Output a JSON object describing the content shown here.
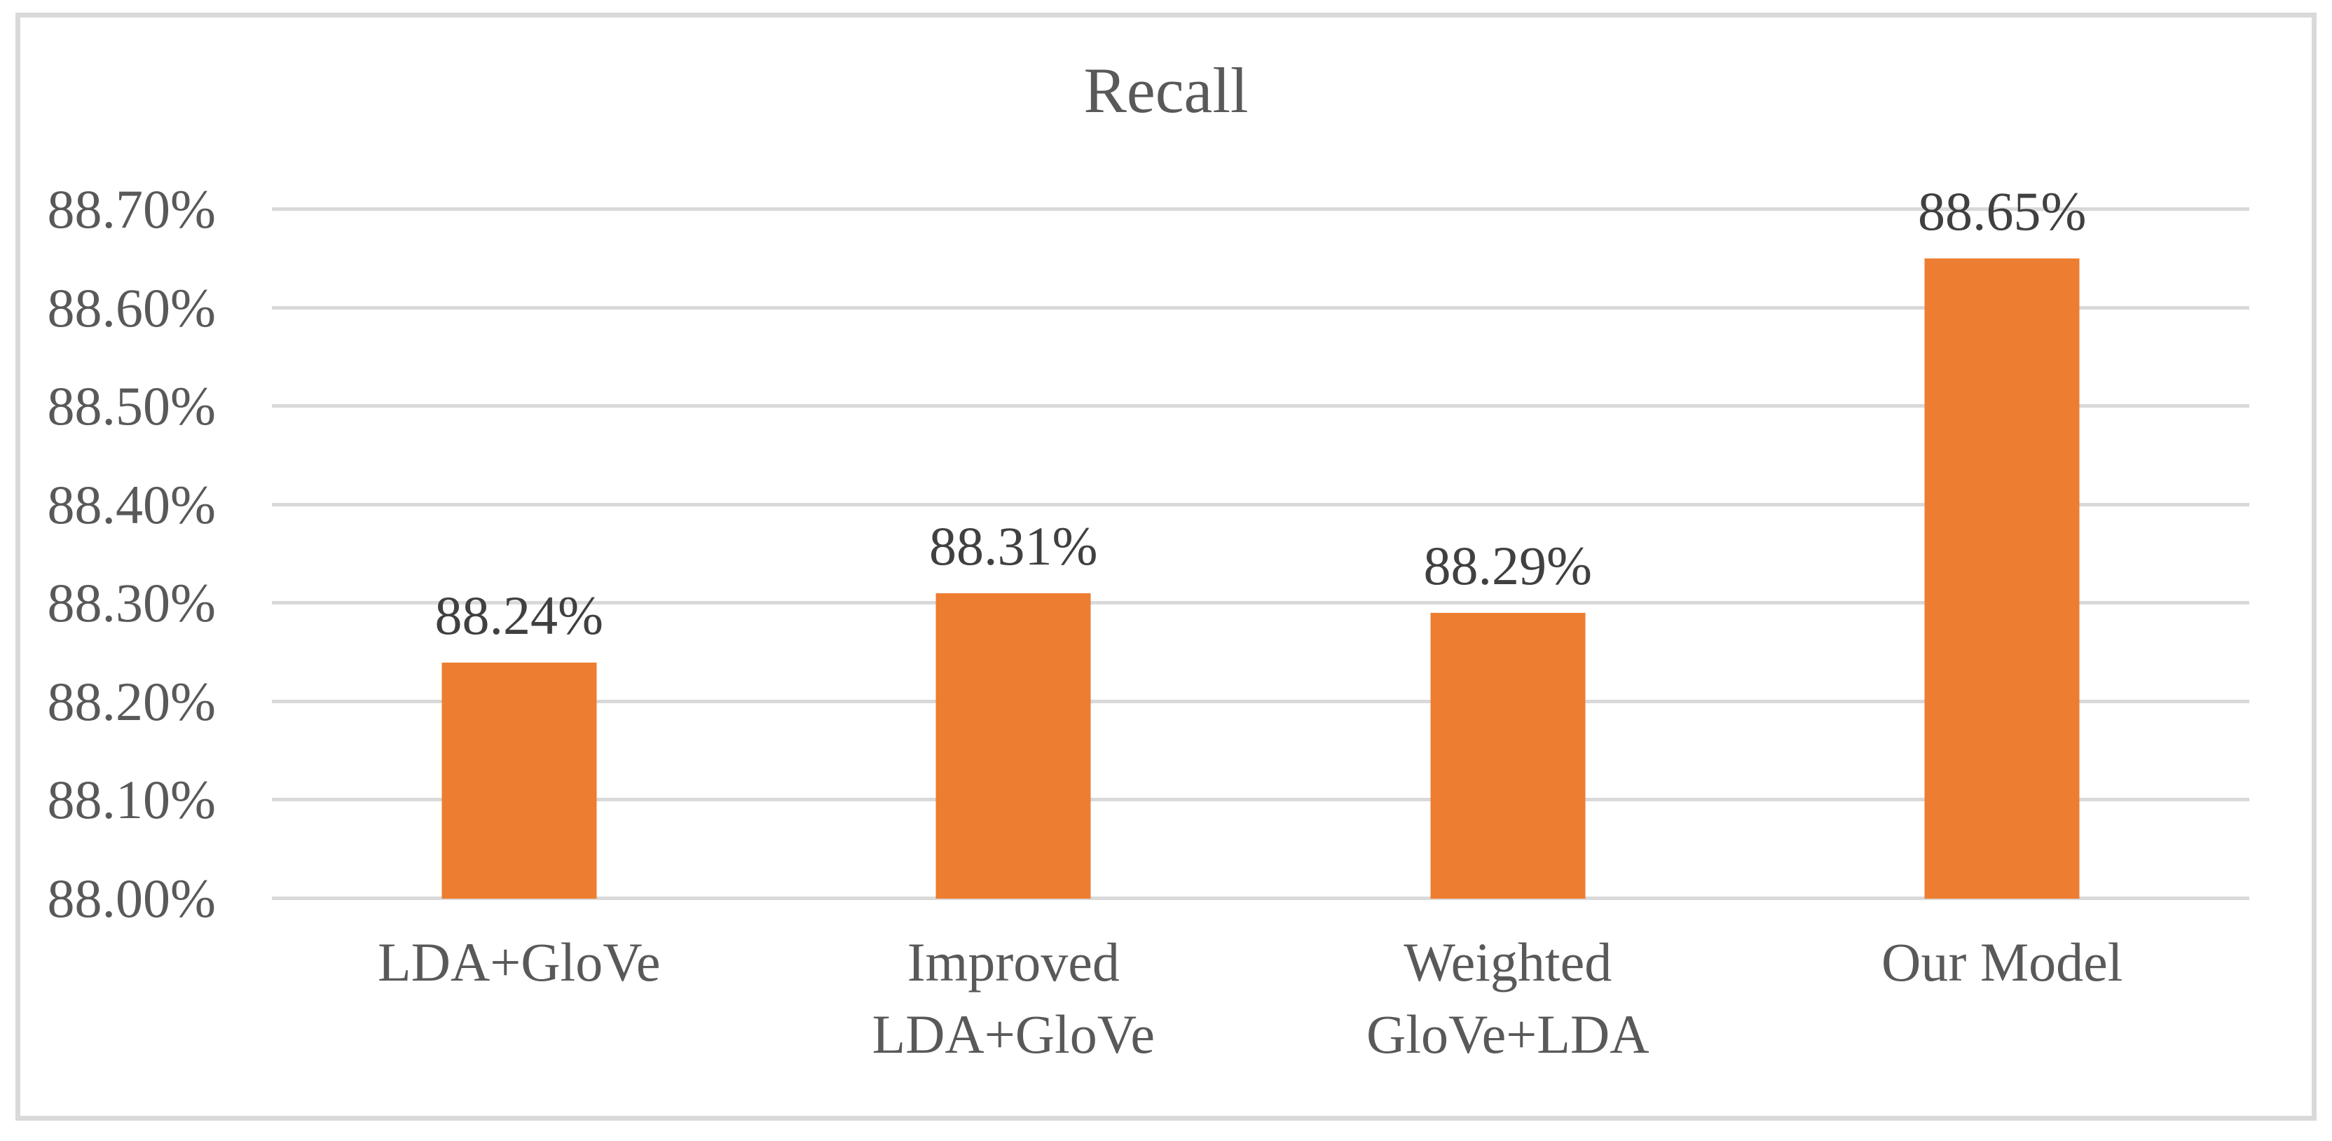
{
  "chart_data": {
    "type": "bar",
    "title": "Recall",
    "categories": [
      "LDA+GloVe",
      "Improved LDA+GloVe",
      "Weighted GloVe+LDA",
      "Our Model"
    ],
    "values": [
      88.24,
      88.31,
      88.29,
      88.65
    ],
    "value_labels": [
      "88.24%",
      "88.31%",
      "88.29%",
      "88.65%"
    ],
    "ylim": [
      88.0,
      88.7
    ],
    "ytick_step": 0.1,
    "ytick_labels": [
      "88.00%",
      "88.10%",
      "88.20%",
      "88.30%",
      "88.40%",
      "88.50%",
      "88.60%",
      "88.70%"
    ],
    "xlabel": "",
    "ylabel": "",
    "grid": true,
    "legend": "none",
    "colors": {
      "bar": "#ED7D31",
      "gridline": "#D9D9D9",
      "chart_border": "#D9D9D9",
      "axis_text": "#595959",
      "title_text": "#595959",
      "data_label_text": "#404040",
      "background": "#FFFFFF"
    }
  }
}
